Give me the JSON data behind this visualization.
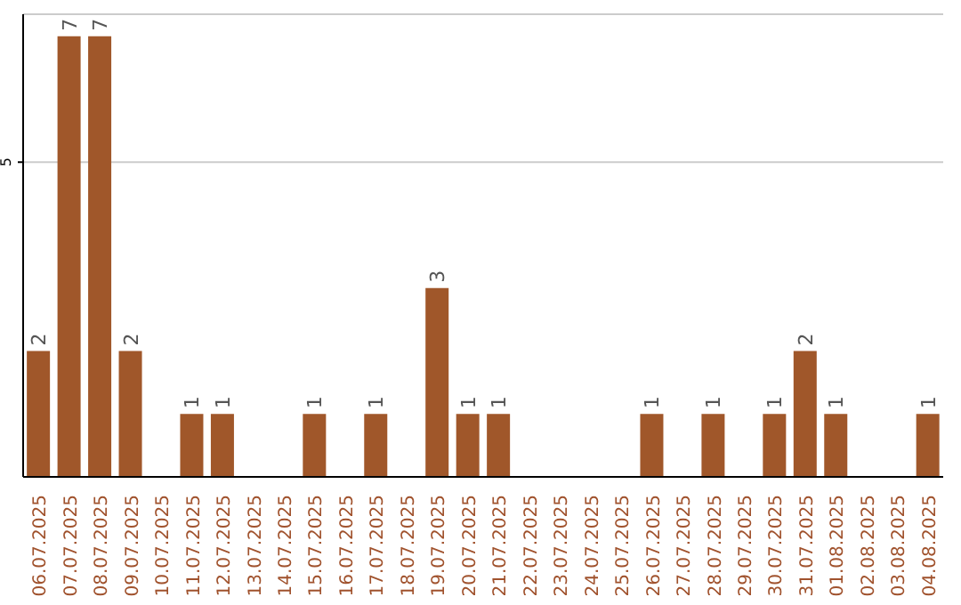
{
  "chart_data": {
    "type": "bar",
    "categories": [
      "06.07.2025",
      "07.07.2025",
      "08.07.2025",
      "09.07.2025",
      "10.07.2025",
      "11.07.2025",
      "12.07.2025",
      "13.07.2025",
      "14.07.2025",
      "15.07.2025",
      "16.07.2025",
      "17.07.2025",
      "18.07.2025",
      "19.07.2025",
      "20.07.2025",
      "21.07.2025",
      "22.07.2025",
      "23.07.2025",
      "24.07.2025",
      "25.07.2025",
      "26.07.2025",
      "27.07.2025",
      "28.07.2025",
      "29.07.2025",
      "30.07.2025",
      "31.07.2025",
      "01.08.2025",
      "02.08.2025",
      "03.08.2025",
      "04.08.2025"
    ],
    "values": [
      2,
      7,
      7,
      2,
      0,
      1,
      1,
      0,
      0,
      1,
      0,
      1,
      0,
      3,
      1,
      1,
      0,
      0,
      0,
      0,
      1,
      0,
      1,
      0,
      1,
      2,
      1,
      0,
      0,
      1
    ],
    "value_labels": [
      "2",
      "7",
      "7",
      "2",
      null,
      "1",
      "1",
      null,
      null,
      "1",
      null,
      "1",
      null,
      "3",
      "1",
      "1",
      null,
      null,
      null,
      null,
      "1",
      null,
      "1",
      null,
      "1",
      "2",
      "1",
      null,
      null,
      "1"
    ],
    "color": "#a0572a",
    "ylim": [
      0,
      7.35
    ],
    "yticks": [
      5
    ],
    "grid": "y"
  }
}
